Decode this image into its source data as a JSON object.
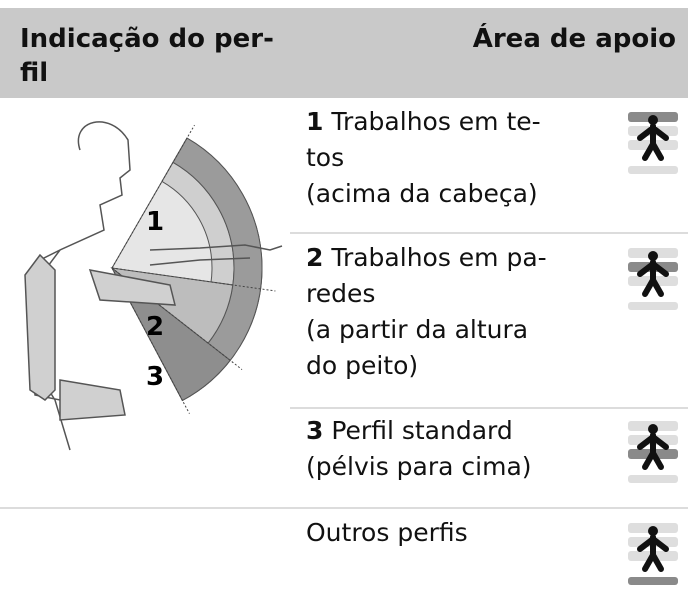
{
  "header": {
    "left": [
      "Indicação do per-",
      "fil"
    ],
    "right": "Área de apoio"
  },
  "figure": {
    "labels": [
      "1",
      "2",
      "3"
    ]
  },
  "rows": [
    {
      "number": "1",
      "lines": [
        "Trabalhos em te-",
        "tos",
        "(acima da cabeça)"
      ]
    },
    {
      "number": "2",
      "lines": [
        "Trabalhos em pa-",
        "redes",
        "(a partir da altura",
        "do peito)"
      ]
    },
    {
      "number": "3",
      "lines": [
        "Perfil standard",
        "(pélvis para cima)"
      ]
    },
    {
      "lines": [
        "Outros perfis"
      ]
    }
  ]
}
